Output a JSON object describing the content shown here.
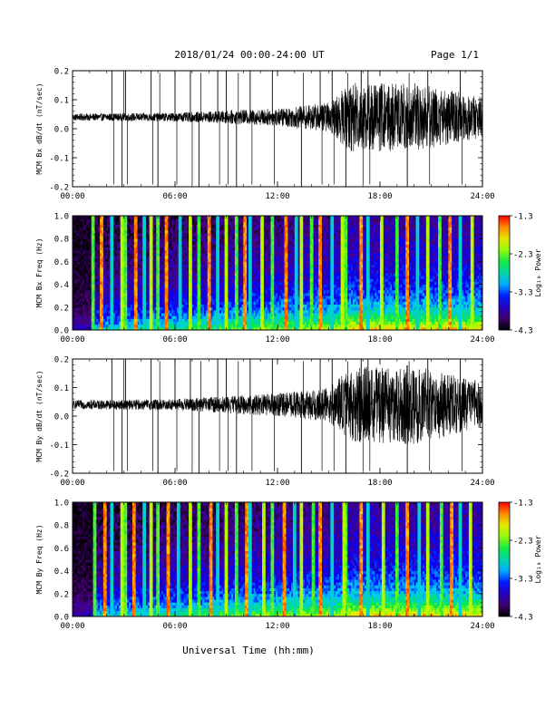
{
  "header": {
    "title": "2018/01/24  00:00-24:00 UT",
    "page": "Page 1/1"
  },
  "xaxis_label": "Universal Time (hh:mm)",
  "chart_data": [
    {
      "type": "line",
      "ylabel": "MCM Bx dB/dt (nT/sec)",
      "xlim": [
        "00:00",
        "24:00"
      ],
      "ylim": [
        -0.2,
        0.2
      ],
      "x_ticks": [
        "00:00",
        "06:00",
        "12:00",
        "18:00",
        "24:00"
      ],
      "y_ticks": [
        "-0.2",
        "-0.1",
        "0.0",
        "0.1",
        "0.2"
      ],
      "baseline": 0.04,
      "envelope": [
        {
          "hour": 0,
          "amp": 0.012
        },
        {
          "hour": 6,
          "amp": 0.015
        },
        {
          "hour": 12,
          "amp": 0.03
        },
        {
          "hour": 15,
          "amp": 0.05
        },
        {
          "hour": 16.3,
          "amp": 0.12
        },
        {
          "hour": 20,
          "amp": 0.12
        },
        {
          "hour": 24,
          "amp": 0.07
        }
      ],
      "spikes_hour": [
        2.3,
        2.9,
        3.1,
        4.6,
        5.0,
        6.0,
        6.9,
        7.4,
        8.5,
        9.0,
        9.6,
        10.4,
        11.7,
        13.4,
        14.5,
        15.2,
        16.0,
        16.9,
        17.3,
        19.6,
        20.8,
        22.7
      ]
    },
    {
      "type": "heatmap",
      "ylabel": "MCM Bx Freq (Hz)",
      "xlim": [
        "00:00",
        "24:00"
      ],
      "ylim": [
        0.0,
        1.0
      ],
      "x_ticks": [
        "00:00",
        "06:00",
        "12:00",
        "18:00",
        "24:00"
      ],
      "y_ticks": [
        "0.0",
        "0.2",
        "0.4",
        "0.6",
        "0.8",
        "1.0"
      ],
      "colorbar": {
        "label": "Log₁₀ Power",
        "ticks": [
          "-1.3",
          "-2.3",
          "-3.3",
          "-4.3"
        ],
        "range": [
          -4.3,
          -1.3
        ]
      },
      "stripes_hour": [
        1.2,
        1.7,
        2.3,
        2.9,
        3.1,
        3.7,
        4.2,
        4.6,
        5.0,
        5.5,
        6.3,
        6.9,
        7.4,
        8.0,
        8.5,
        9.0,
        9.6,
        10.1,
        10.4,
        11.1,
        11.7,
        12.5,
        13.1,
        13.4,
        14.0,
        14.5,
        15.2,
        15.8,
        16.0,
        16.9,
        17.3,
        18.1,
        19.0,
        19.6,
        20.2,
        20.8,
        21.5,
        22.1,
        22.7,
        23.4
      ]
    },
    {
      "type": "line",
      "ylabel": "MCM By dB/dt (nT/sec)",
      "xlim": [
        "00:00",
        "24:00"
      ],
      "ylim": [
        -0.2,
        0.2
      ],
      "x_ticks": [
        "00:00",
        "06:00",
        "12:00",
        "18:00",
        "24:00"
      ],
      "y_ticks": [
        "-0.2",
        "-0.1",
        "0.0",
        "0.1",
        "0.2"
      ],
      "baseline": 0.04,
      "envelope": [
        {
          "hour": 0,
          "amp": 0.015
        },
        {
          "hour": 6,
          "amp": 0.02
        },
        {
          "hour": 12,
          "amp": 0.04
        },
        {
          "hour": 15,
          "amp": 0.06
        },
        {
          "hour": 16.3,
          "amp": 0.13
        },
        {
          "hour": 20,
          "amp": 0.14
        },
        {
          "hour": 24,
          "amp": 0.08
        }
      ],
      "spikes_hour": [
        2.3,
        2.9,
        3.1,
        4.6,
        5.0,
        6.0,
        6.9,
        7.4,
        8.5,
        9.0,
        9.6,
        10.4,
        11.7,
        13.4,
        14.5,
        15.2,
        16.0,
        16.9,
        17.3,
        19.6,
        20.8,
        22.7
      ]
    },
    {
      "type": "heatmap",
      "ylabel": "MCM By Freq (Hz)",
      "xlim": [
        "00:00",
        "24:00"
      ],
      "ylim": [
        0.0,
        1.0
      ],
      "x_ticks": [
        "00:00",
        "06:00",
        "12:00",
        "18:00",
        "24:00"
      ],
      "y_ticks": [
        "0.0",
        "0.2",
        "0.4",
        "0.6",
        "0.8",
        "1.0"
      ],
      "colorbar": {
        "label": "Log₁₀ Power",
        "ticks": [
          "-1.3",
          "-2.3",
          "-3.3",
          "-4.3"
        ],
        "range": [
          -4.3,
          -1.3
        ]
      },
      "stripes_hour": [
        1.3,
        1.9,
        2.3,
        2.9,
        3.1,
        3.6,
        4.2,
        4.6,
        5.0,
        5.6,
        6.2,
        6.9,
        7.4,
        8.1,
        8.5,
        9.0,
        9.6,
        10.2,
        10.4,
        11.2,
        11.7,
        12.4,
        13.0,
        13.4,
        14.1,
        14.5,
        15.2,
        15.9,
        16.0,
        16.9,
        17.3,
        18.2,
        19.0,
        19.6,
        20.3,
        20.8,
        21.6,
        22.2,
        22.7,
        23.3
      ]
    }
  ]
}
